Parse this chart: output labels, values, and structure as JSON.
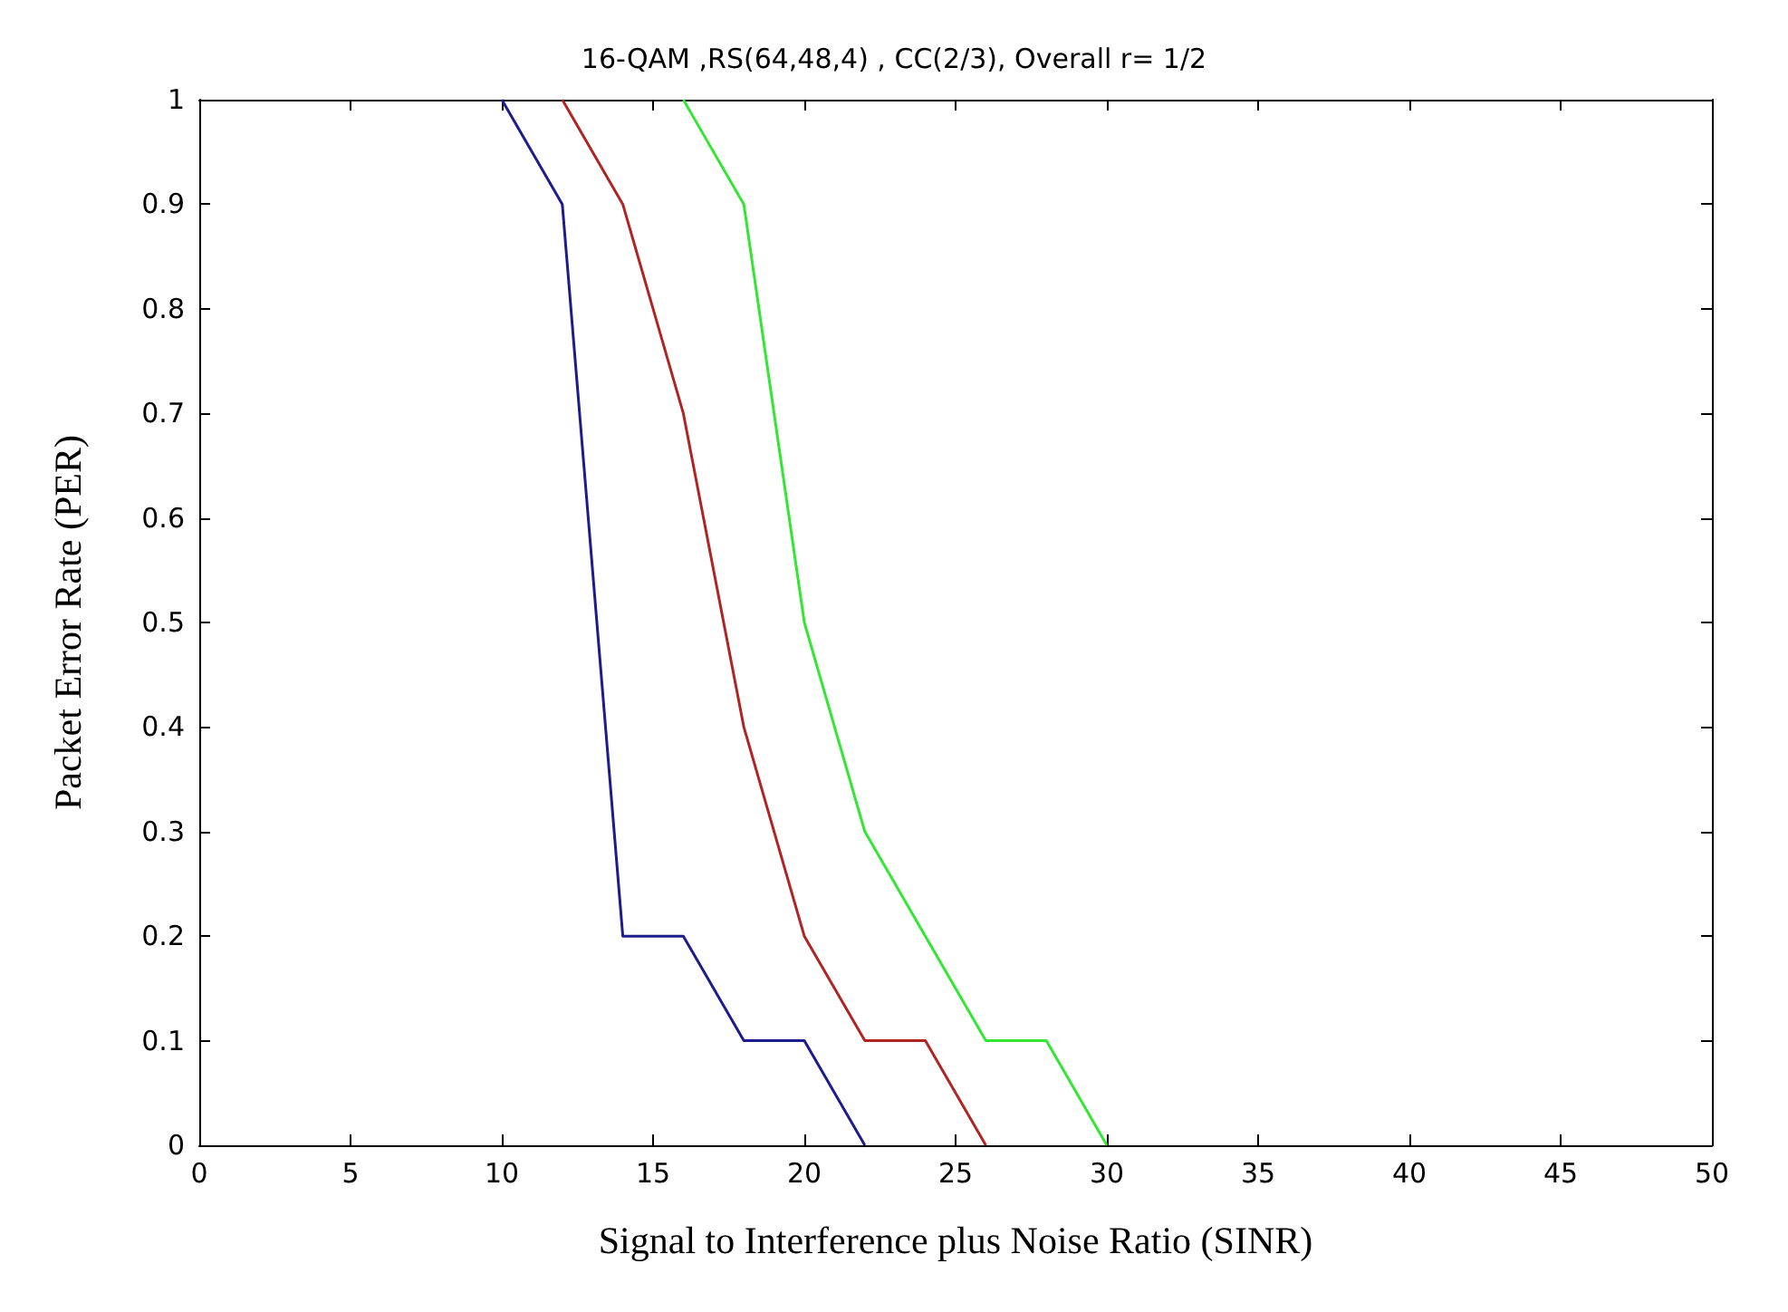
{
  "chart_data": {
    "type": "line",
    "title": "16-QAM ,RS(64,48,4) , CC(2/3), Overall r= 1/2",
    "xlabel": "Signal to Interference plus Noise Ratio (SINR)",
    "ylabel": "Packet Error Rate (PER)",
    "series": [
      {
        "color": "#1c1c8c",
        "x": [
          10,
          12,
          14,
          16,
          18,
          20,
          22
        ],
        "values": [
          1,
          0.9,
          0.2,
          0.2,
          0.1,
          0.1,
          0
        ]
      },
      {
        "color": "#b02424",
        "x": [
          12,
          14,
          16,
          18,
          20,
          22,
          24,
          26
        ],
        "values": [
          1,
          0.9,
          0.7,
          0.4,
          0.2,
          0.1,
          0.1,
          0
        ]
      },
      {
        "color": "#33e633",
        "x": [
          16,
          18,
          20,
          22,
          24,
          26,
          28,
          30
        ],
        "values": [
          1,
          0.9,
          0.5,
          0.3,
          0.2,
          0.1,
          0.1,
          0
        ]
      }
    ],
    "xlim": [
      0,
      50
    ],
    "xticks": [
      0,
      5,
      10,
      15,
      20,
      25,
      30,
      35,
      40,
      45,
      50
    ],
    "ylim": [
      0,
      1
    ],
    "yticks": [
      0,
      0.1,
      0.2,
      0.3,
      0.4,
      0.5,
      0.6,
      0.7,
      0.8,
      0.9,
      1
    ],
    "grid": false,
    "marker": "none",
    "line_style": "solid"
  }
}
